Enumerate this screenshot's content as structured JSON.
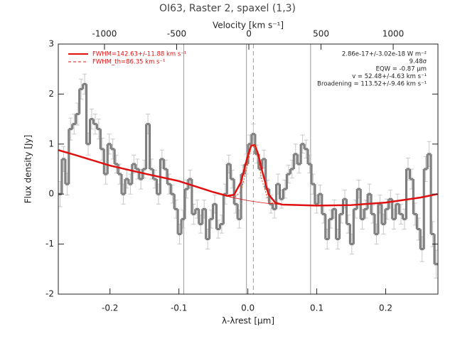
{
  "chart_data": {
    "type": "histogram",
    "title": "OI63, Raster 2, spaxel (1,3)",
    "x_label": "λ-λrest [μm]",
    "y_label": "Flux density [Jy]",
    "x2_label": "Velocity [km s⁻¹]",
    "xlim": [
      -0.275,
      0.2758
    ],
    "xticks": [
      -0.2,
      -0.1,
      {
        "value": 0,
        "label": "0.0"
      },
      0.1,
      0.2
    ],
    "x2lim": [
      -1320,
      1310
    ],
    "x2ticks": [
      -1000,
      -500,
      0,
      500,
      1000
    ],
    "ylim": [
      -2,
      3
    ],
    "yticks": [
      -2,
      -1,
      0,
      1,
      2,
      3
    ],
    "color": "#8a8a8a",
    "error_color": "#c8c8c8",
    "bins": [
      -0.275,
      -0.2699,
      -0.2648,
      -0.2597,
      -0.2546,
      -0.2495,
      -0.2444,
      -0.2393,
      -0.2342,
      -0.2291,
      -0.224,
      -0.2189,
      -0.2138,
      -0.2087,
      -0.2036,
      -0.1985,
      -0.1934,
      -0.1883,
      -0.1832,
      -0.1781,
      -0.173,
      -0.1679,
      -0.1628,
      -0.1577,
      -0.1526,
      -0.1475,
      -0.1424,
      -0.1373,
      -0.1322,
      -0.1271,
      -0.122,
      -0.1169,
      -0.1118,
      -0.1067,
      -0.1016,
      -0.0965,
      -0.0914,
      -0.0863,
      -0.0812,
      -0.0761,
      -0.071,
      -0.0659,
      -0.0608,
      -0.0557,
      -0.0506,
      -0.0455,
      -0.0404,
      -0.0353,
      -0.0302,
      -0.0251,
      -0.02,
      -0.0149,
      -0.0098,
      -0.0047,
      0.0004,
      0.0055,
      0.0106,
      0.0157,
      0.0208,
      0.0259,
      0.031,
      0.0361,
      0.0412,
      0.0463,
      0.0514,
      0.0565,
      0.0616,
      0.0667,
      0.0718,
      0.0769,
      0.082,
      0.0871,
      0.0922,
      0.0973,
      0.1024,
      0.1075,
      0.1126,
      0.1177,
      0.1228,
      0.1279,
      0.133,
      0.1381,
      0.1432,
      0.1483,
      0.1534,
      0.1585,
      0.1636,
      0.1687,
      0.1738,
      0.1789,
      0.184,
      0.1891,
      0.1942,
      0.1993,
      0.2044,
      0.2095,
      0.2146,
      0.2197,
      0.2248,
      0.2299,
      0.235,
      0.2401,
      0.2452,
      0.2503,
      0.2554,
      0.2605,
      0.2656,
      0.2707,
      0.2758
    ],
    "values": [
      0.0,
      0.7,
      0.2,
      1.3,
      1.4,
      1.6,
      2.1,
      2.2,
      1.0,
      1.5,
      1.4,
      1.3,
      0.9,
      0.4,
      1.0,
      0.9,
      0.6,
      0.4,
      0.0,
      0.3,
      0.2,
      0.6,
      0.5,
      0.3,
      0.5,
      1.4,
      0.5,
      0.3,
      0.0,
      0.7,
      0.5,
      0.2,
      0.0,
      -0.3,
      -0.8,
      -0.5,
      0.1,
      0.3,
      -0.4,
      -0.3,
      -0.6,
      -0.3,
      -0.9,
      -0.5,
      -0.2,
      -0.7,
      -0.6,
      0.0,
      0.6,
      0.3,
      -0.2,
      -0.5,
      0.4,
      0.6,
      1.0,
      1.2,
      0.8,
      0.5,
      0.7,
      0.1,
      -0.2,
      -0.3,
      0.2,
      -0.1,
      0.1,
      0.4,
      0.5,
      0.8,
      0.6,
      1.0,
      0.9,
      0.6,
      0.2,
      -0.2,
      0.0,
      -0.4,
      -0.9,
      -0.5,
      -0.3,
      -0.9,
      -0.4,
      -0.1,
      -0.6,
      -1.0,
      -0.3,
      0.1,
      -0.5,
      -0.3,
      0.0,
      -0.4,
      -0.8,
      -0.2,
      -0.6,
      -0.3,
      -0.1,
      -0.5,
      -0.2,
      -0.4,
      -0.5,
      0.5,
      0.3,
      -0.4,
      -0.7,
      -1.1,
      0.5,
      0.8,
      -0.8,
      -1.4
    ],
    "errors": [
      0.25,
      0.25,
      0.22,
      0.22,
      0.2,
      0.22,
      0.2,
      0.2,
      0.22,
      0.2,
      0.2,
      0.2,
      0.22,
      0.2,
      0.2,
      0.2,
      0.18,
      0.2,
      0.2,
      0.18,
      0.2,
      0.18,
      0.2,
      0.2,
      0.18,
      0.2,
      0.2,
      0.18,
      0.2,
      0.18,
      0.18,
      0.2,
      0.18,
      0.18,
      0.2,
      0.18,
      0.18,
      0.18,
      0.2,
      0.18,
      0.18,
      0.18,
      0.2,
      0.18,
      0.18,
      0.18,
      0.18,
      0.2,
      0.18,
      0.18,
      0.18,
      0.18,
      0.18,
      0.2,
      0.18,
      0.2,
      0.18,
      0.18,
      0.18,
      0.18,
      0.18,
      0.18,
      0.2,
      0.18,
      0.18,
      0.18,
      0.18,
      0.2,
      0.18,
      0.18,
      0.18,
      0.18,
      0.2,
      0.18,
      0.18,
      0.18,
      0.2,
      0.18,
      0.18,
      0.2,
      0.18,
      0.18,
      0.18,
      0.2,
      0.18,
      0.18,
      0.2,
      0.18,
      0.2,
      0.18,
      0.2,
      0.18,
      0.2,
      0.2,
      0.18,
      0.2,
      0.2,
      0.2,
      0.2,
      0.22,
      0.2,
      0.22,
      0.22,
      0.25,
      0.25,
      0.25,
      0.25,
      0.28
    ],
    "vlines": [
      -0.093,
      -0.002,
      0.091
    ],
    "vlines_dashed": [
      0.008
    ],
    "vline_color": "#999999",
    "series": [
      {
        "name": "FWHM=142.63+/-11.88 km s⁻¹",
        "color": "#e01010",
        "style": "solid",
        "width": 2.5,
        "x": [
          -0.275,
          -0.25,
          -0.2,
          -0.15,
          -0.1,
          -0.05,
          -0.03,
          -0.02,
          -0.01,
          0,
          0.005,
          0.01,
          0.015,
          0.02,
          0.03,
          0.04,
          0.05,
          0.1,
          0.15,
          0.2,
          0.25,
          0.275
        ],
        "values": [
          0.88,
          0.78,
          0.57,
          0.41,
          0.26,
          0.04,
          -0.035,
          -0.015,
          0.24,
          0.77,
          0.97,
          0.98,
          0.8,
          0.5,
          -0.005,
          -0.175,
          -0.21,
          -0.23,
          -0.22,
          -0.17,
          -0.07,
          0.0
        ]
      },
      {
        "name": "FWHM_th=86.35 km s⁻¹",
        "color": "#e05020",
        "style": "dashed",
        "width": 1,
        "x": [
          -0.03,
          -0.02,
          -0.01,
          0,
          0.005,
          0.01,
          0.015,
          0.02,
          0.03,
          0.04
        ],
        "values": [
          -0.04,
          -0.07,
          0.05,
          0.6,
          0.95,
          0.98,
          0.7,
          0.3,
          -0.15,
          -0.19
        ]
      },
      {
        "color": "#e01010",
        "style": "solid",
        "width": 0.8,
        "x": [
          -0.275,
          -0.25,
          -0.2,
          -0.15,
          -0.1,
          -0.05,
          -0.025,
          0,
          0.025,
          0.05,
          0.1,
          0.15,
          0.2,
          0.25,
          0.275
        ],
        "values": [
          0.88,
          0.78,
          0.57,
          0.41,
          0.26,
          0.04,
          -0.06,
          -0.13,
          -0.18,
          -0.21,
          -0.23,
          -0.22,
          -0.17,
          -0.07,
          0.0
        ]
      }
    ],
    "annotations": [
      "2.86e-17+/-3.02e-18 W m⁻²",
      "9.48σ",
      "EQW = -0.87 μm",
      "v = 52.48+/-4.63 km s⁻¹",
      "Broadening = 113.52+/-9.46 km s⁻¹"
    ]
  }
}
